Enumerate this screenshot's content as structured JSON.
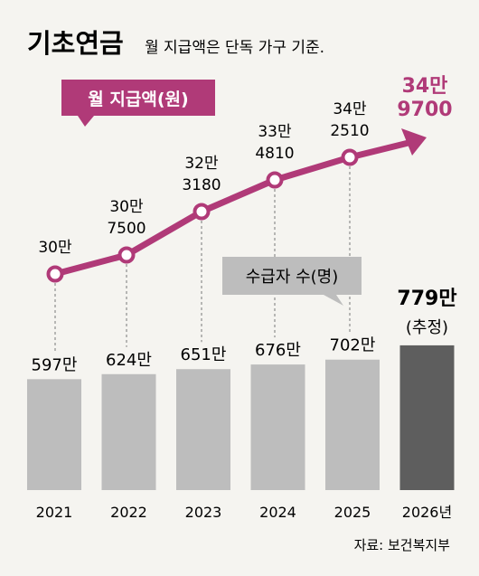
{
  "header": {
    "title": "기초연금",
    "subtitle": "월 지급액은 단독 가구 기준."
  },
  "legend": {
    "line_label": "월 지급액(원)",
    "bar_label": "수급자 수(명)"
  },
  "source": "자료: 보건복지부",
  "colors": {
    "line": "#b03a78",
    "bar": "#bdbdbd",
    "bar_last": "#5e5e5e",
    "legend_bar_box": "#bdbdbd"
  },
  "chart_data": {
    "type": "bar+line",
    "categories": [
      "2021",
      "2022",
      "2023",
      "2024",
      "2025",
      "2026년"
    ],
    "bars": {
      "values": [
        5970000,
        6240000,
        6510000,
        6760000,
        7020000,
        7790000
      ],
      "labels": [
        "597만",
        "624만",
        "651만",
        "676만",
        "702만",
        "779만"
      ],
      "last_note": "(추정)"
    },
    "line": {
      "values": [
        300000,
        307500,
        323180,
        334810,
        342510,
        349700
      ],
      "labels": [
        [
          "30만"
        ],
        [
          "30만",
          "7500"
        ],
        [
          "32만",
          "3180"
        ],
        [
          "33만",
          "4810"
        ],
        [
          "34만",
          "2510"
        ],
        [
          "34만",
          "9700"
        ]
      ]
    }
  }
}
